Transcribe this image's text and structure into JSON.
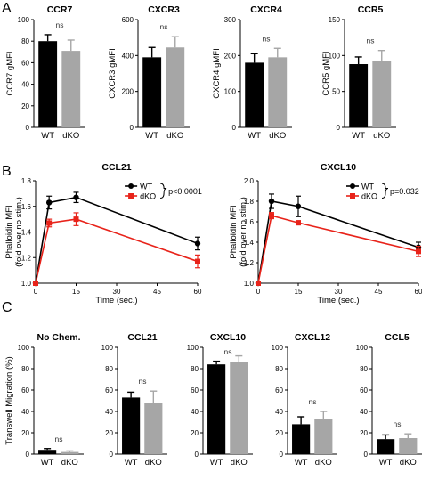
{
  "panels": [
    {
      "letter": "A"
    },
    {
      "letter": "B"
    },
    {
      "letter": "C"
    }
  ],
  "chart_data": [
    {
      "type": "bar",
      "panel": "A",
      "title": "CCR7",
      "ylabel": "CCR7 gMFI",
      "categories": [
        "WT",
        "dKO"
      ],
      "values": [
        80,
        71
      ],
      "errors": [
        6,
        10
      ],
      "ylim": [
        0,
        100
      ],
      "yticks": [
        0,
        20,
        40,
        60,
        80,
        100
      ],
      "colors": [
        "#000000",
        "#a6a6a6"
      ],
      "annotation": "ns"
    },
    {
      "type": "bar",
      "panel": "A",
      "title": "CXCR3",
      "ylabel": "CXCR3 gMFI",
      "categories": [
        "WT",
        "dKO"
      ],
      "values": [
        390,
        445
      ],
      "errors": [
        55,
        60
      ],
      "ylim": [
        0,
        600
      ],
      "yticks": [
        0,
        200,
        400,
        600
      ],
      "colors": [
        "#000000",
        "#a6a6a6"
      ],
      "annotation": "ns"
    },
    {
      "type": "bar",
      "panel": "A",
      "title": "CXCR4",
      "ylabel": "CXCR4 gMFI",
      "categories": [
        "WT",
        "dKO"
      ],
      "values": [
        180,
        195
      ],
      "errors": [
        25,
        25
      ],
      "ylim": [
        0,
        300
      ],
      "yticks": [
        0,
        100,
        200,
        300
      ],
      "colors": [
        "#000000",
        "#a6a6a6"
      ],
      "annotation": "ns"
    },
    {
      "type": "bar",
      "panel": "A",
      "title": "CCR5",
      "ylabel": "CCR5 gMFI",
      "categories": [
        "WT",
        "dKO"
      ],
      "values": [
        88,
        93
      ],
      "errors": [
        10,
        14
      ],
      "ylim": [
        0,
        150
      ],
      "yticks": [
        0,
        50,
        100,
        150
      ],
      "colors": [
        "#000000",
        "#a6a6a6"
      ],
      "annotation": "ns"
    },
    {
      "type": "line",
      "panel": "B",
      "title": "CCL21",
      "ylabel": "Phalloidin MFI",
      "ylabel2": "(fold over no stim.)",
      "xlabel": "Time (sec.)",
      "xlim": [
        0,
        60
      ],
      "ylim": [
        1.0,
        1.8
      ],
      "xticks": [
        0,
        15,
        30,
        45,
        60
      ],
      "yticks": [
        1.0,
        1.2,
        1.4,
        1.6,
        1.8
      ],
      "series": [
        {
          "name": "WT",
          "color": "#000000",
          "marker": "circle",
          "x": [
            0,
            5,
            15,
            60
          ],
          "y": [
            1.0,
            1.63,
            1.67,
            1.31
          ],
          "err": [
            0,
            0.05,
            0.04,
            0.05
          ]
        },
        {
          "name": "dKO",
          "color": "#e8231a",
          "marker": "square",
          "x": [
            0,
            5,
            15,
            60
          ],
          "y": [
            1.0,
            1.47,
            1.5,
            1.17
          ],
          "err": [
            0,
            0.03,
            0.05,
            0.05
          ]
        }
      ],
      "pvalue": "p<0.0001"
    },
    {
      "type": "line",
      "panel": "B",
      "title": "CXCL10",
      "ylabel": "Phalloidin MFI",
      "ylabel2": "(fold over no stim.)",
      "xlabel": "Time (sec.)",
      "xlim": [
        0,
        60
      ],
      "ylim": [
        1.0,
        2.0
      ],
      "xticks": [
        0,
        15,
        30,
        45,
        60
      ],
      "yticks": [
        1.0,
        1.2,
        1.4,
        1.6,
        1.8,
        2.0
      ],
      "series": [
        {
          "name": "WT",
          "color": "#000000",
          "marker": "circle",
          "x": [
            0,
            5,
            15,
            60
          ],
          "y": [
            1.0,
            1.8,
            1.75,
            1.35
          ],
          "err": [
            0,
            0.07,
            0.1,
            0.05
          ]
        },
        {
          "name": "dKO",
          "color": "#e8231a",
          "marker": "square",
          "x": [
            0,
            5,
            15,
            60
          ],
          "y": [
            1.0,
            1.66,
            1.59,
            1.31
          ],
          "err": [
            0,
            0.03,
            0.02,
            0.05
          ]
        }
      ],
      "pvalue": "p=0.032"
    },
    {
      "type": "bar",
      "panel": "C",
      "title": "No Chem.",
      "ylabel": "Transwell Migration (%)",
      "categories": [
        "WT",
        "dKO"
      ],
      "values": [
        4,
        2
      ],
      "errors": [
        1.2,
        1.0
      ],
      "ylim": [
        0,
        100
      ],
      "yticks": [
        0,
        20,
        40,
        60,
        80,
        100
      ],
      "colors": [
        "#000000",
        "#a6a6a6"
      ],
      "annotation": "ns"
    },
    {
      "type": "bar",
      "panel": "C",
      "title": "CCL21",
      "ylabel": "",
      "categories": [
        "WT",
        "dKO"
      ],
      "values": [
        53,
        48
      ],
      "errors": [
        5,
        11
      ],
      "ylim": [
        0,
        100
      ],
      "yticks": [
        0,
        20,
        40,
        60,
        80,
        100
      ],
      "colors": [
        "#000000",
        "#a6a6a6"
      ],
      "annotation": "ns"
    },
    {
      "type": "bar",
      "panel": "C",
      "title": "CXCL10",
      "ylabel": "",
      "categories": [
        "WT",
        "dKO"
      ],
      "values": [
        84,
        86
      ],
      "errors": [
        3,
        6
      ],
      "ylim": [
        0,
        100
      ],
      "yticks": [
        0,
        20,
        40,
        60,
        80,
        100
      ],
      "colors": [
        "#000000",
        "#a6a6a6"
      ],
      "annotation": "ns"
    },
    {
      "type": "bar",
      "panel": "C",
      "title": "CXCL12",
      "ylabel": "",
      "categories": [
        "WT",
        "dKO"
      ],
      "values": [
        28,
        33
      ],
      "errors": [
        7,
        7
      ],
      "ylim": [
        0,
        100
      ],
      "yticks": [
        0,
        20,
        40,
        60,
        80,
        100
      ],
      "colors": [
        "#000000",
        "#a6a6a6"
      ],
      "annotation": "ns"
    },
    {
      "type": "bar",
      "panel": "C",
      "title": "CCL5",
      "ylabel": "",
      "categories": [
        "WT",
        "dKO"
      ],
      "values": [
        14,
        15
      ],
      "errors": [
        4,
        4
      ],
      "ylim": [
        0,
        100
      ],
      "yticks": [
        0,
        20,
        40,
        60,
        80,
        100
      ],
      "colors": [
        "#000000",
        "#a6a6a6"
      ],
      "annotation": "ns"
    }
  ]
}
